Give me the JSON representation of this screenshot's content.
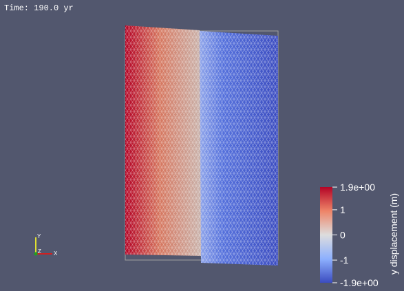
{
  "time_label": "Time: 190.0 yr",
  "axes": {
    "x": "X",
    "y": "Y",
    "z": "Z"
  },
  "colorbar": {
    "title": "y displacement (m)",
    "range": [
      -1.9,
      1.9
    ],
    "ticks": [
      {
        "value": 1.9,
        "label": "1.9e+00"
      },
      1,
      0,
      -1,
      {
        "value": -1.9,
        "label": "-1.9e+00"
      }
    ]
  }
}
